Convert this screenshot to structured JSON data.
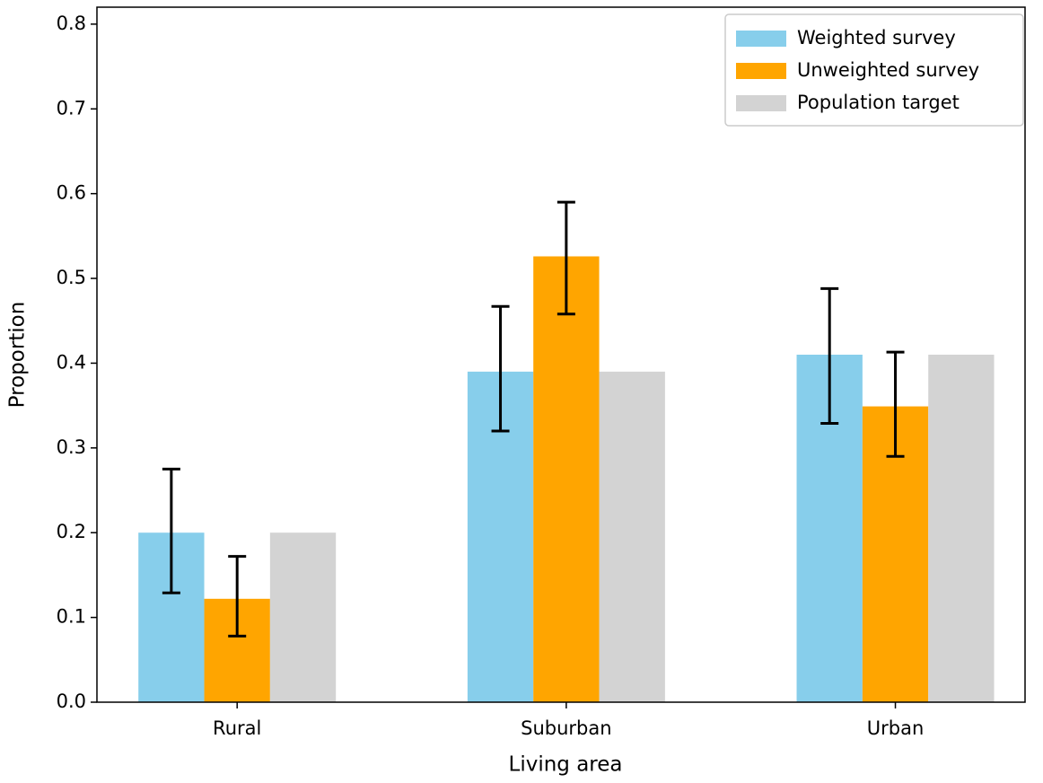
{
  "chart_data": {
    "type": "bar",
    "xlabel": "Living area",
    "ylabel": "Proportion",
    "categories": [
      "Rural",
      "Suburban",
      "Urban"
    ],
    "series": [
      {
        "name": "Weighted survey",
        "color": "#87ceeb",
        "values": [
          0.2,
          0.39,
          0.41
        ],
        "lower": [
          0.129,
          0.32,
          0.329
        ],
        "upper": [
          0.275,
          0.467,
          0.488
        ]
      },
      {
        "name": "Unweighted survey",
        "color": "#ffa500",
        "values": [
          0.122,
          0.526,
          0.349
        ],
        "lower": [
          0.078,
          0.458,
          0.29
        ],
        "upper": [
          0.172,
          0.59,
          0.413
        ]
      },
      {
        "name": "Population target",
        "color": "#d3d3d3",
        "values": [
          0.2,
          0.39,
          0.41
        ]
      }
    ],
    "ylim": [
      0,
      0.82
    ],
    "yticks": [
      {
        "value": 0,
        "label": "0.0"
      },
      0.1,
      0.2,
      0.3,
      0.4,
      0.5,
      0.6,
      0.7,
      0.8
    ],
    "legend": "upper right"
  }
}
